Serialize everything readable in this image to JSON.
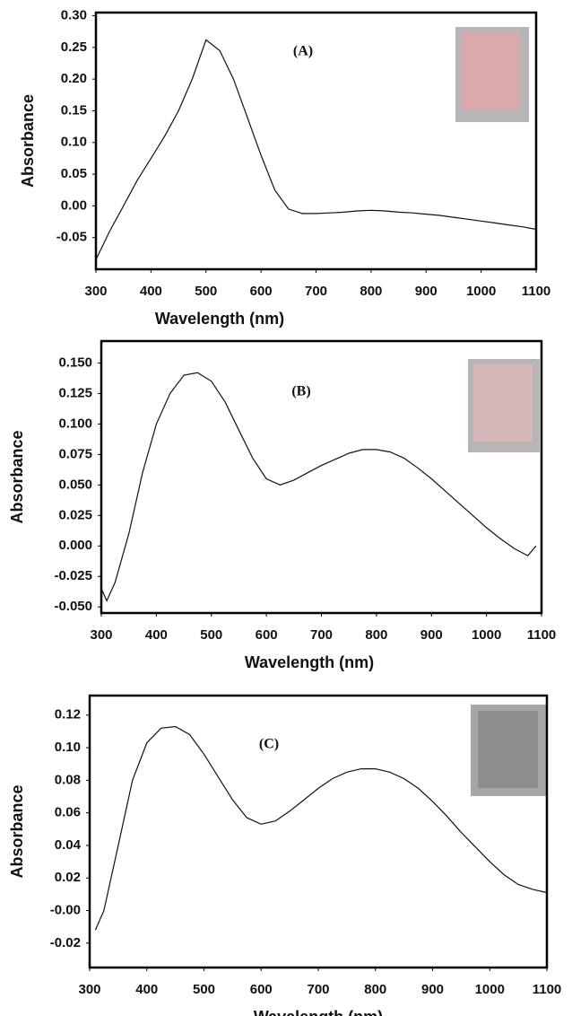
{
  "chart_data": [
    {
      "type": "line",
      "annotation": "(A)",
      "x_label": "Wavelength (nm)",
      "y_label": "Absorbance",
      "color": "#111111",
      "x": [
        300,
        325,
        350,
        375,
        400,
        425,
        450,
        475,
        500,
        525,
        550,
        575,
        600,
        625,
        650,
        675,
        700,
        725,
        750,
        775,
        800,
        825,
        850,
        875,
        900,
        925,
        950,
        975,
        1000,
        1025,
        1050,
        1075,
        1100
      ],
      "values": [
        -0.085,
        -0.04,
        0.0,
        0.04,
        0.075,
        0.11,
        0.15,
        0.2,
        0.262,
        0.245,
        0.2,
        0.14,
        0.08,
        0.025,
        -0.005,
        -0.012,
        -0.012,
        -0.011,
        -0.01,
        -0.008,
        -0.007,
        -0.008,
        -0.01,
        -0.011,
        -0.013,
        -0.015,
        -0.018,
        -0.021,
        -0.024,
        -0.027,
        -0.03,
        -0.033,
        -0.037
      ],
      "xlim": [
        300,
        1100
      ],
      "xticks": [
        300,
        400,
        500,
        600,
        700,
        800,
        900,
        1000,
        1100
      ],
      "ylim": [
        -0.1,
        0.305
      ],
      "yticks": [
        {
          "value": 0.3,
          "label": "0.30"
        },
        0.25,
        {
          "value": 0.2,
          "label": "0.20"
        },
        0.15,
        {
          "value": 0.1,
          "label": "0.10"
        },
        0.05,
        {
          "value": 0,
          "label": "0.00"
        },
        -0.05
      ]
    },
    {
      "type": "line",
      "annotation": "(B)",
      "x_label": "Wavelength (nm)",
      "y_label": "Absorbance",
      "color": "#111111",
      "x": [
        300,
        310,
        325,
        350,
        375,
        400,
        425,
        450,
        475,
        500,
        525,
        550,
        575,
        600,
        625,
        650,
        675,
        700,
        725,
        750,
        775,
        800,
        825,
        850,
        875,
        900,
        925,
        950,
        975,
        1000,
        1025,
        1050,
        1075,
        1090
      ],
      "values": [
        -0.035,
        -0.045,
        -0.03,
        0.01,
        0.06,
        0.1,
        0.125,
        0.14,
        0.142,
        0.135,
        0.118,
        0.095,
        0.072,
        0.055,
        0.05,
        0.054,
        0.06,
        0.066,
        0.071,
        0.076,
        0.079,
        0.079,
        0.077,
        0.072,
        0.064,
        0.055,
        0.045,
        0.035,
        0.025,
        0.015,
        0.006,
        -0.002,
        -0.008,
        0.0
      ],
      "xlim": [
        300,
        1100
      ],
      "xticks": [
        300,
        400,
        500,
        600,
        700,
        800,
        900,
        1000,
        1100
      ],
      "ylim": [
        -0.055,
        0.168
      ],
      "yticks": [
        {
          "value": 0.15,
          "label": "0.150"
        },
        0.125,
        {
          "value": 0.1,
          "label": "0.100"
        },
        0.075,
        {
          "value": 0.05,
          "label": "0.050"
        },
        0.025,
        {
          "value": 0,
          "label": "0.000"
        },
        -0.025,
        {
          "value": -0.05,
          "label": "-0.050"
        }
      ]
    },
    {
      "type": "line",
      "annotation": "(C)",
      "x_label": "Wavelength (nm)",
      "y_label": "Absorbance",
      "color": "#111111",
      "x": [
        310,
        325,
        350,
        375,
        400,
        425,
        450,
        475,
        500,
        525,
        550,
        575,
        600,
        625,
        650,
        675,
        700,
        725,
        750,
        775,
        800,
        825,
        850,
        875,
        900,
        925,
        950,
        975,
        1000,
        1025,
        1050,
        1075,
        1100
      ],
      "values": [
        -0.012,
        0.0,
        0.04,
        0.08,
        0.103,
        0.112,
        0.113,
        0.108,
        0.096,
        0.082,
        0.068,
        0.057,
        0.053,
        0.055,
        0.061,
        0.068,
        0.075,
        0.081,
        0.085,
        0.087,
        0.087,
        0.085,
        0.081,
        0.075,
        0.067,
        0.058,
        0.048,
        0.039,
        0.03,
        0.022,
        0.016,
        0.013,
        0.011
      ],
      "xlim": [
        300,
        1100
      ],
      "xticks": [
        300,
        400,
        500,
        600,
        700,
        800,
        900,
        1000,
        1100
      ],
      "ylim": [
        -0.035,
        0.132
      ],
      "yticks": [
        0.12,
        {
          "value": 0.1,
          "label": "0.10"
        },
        0.08,
        0.06,
        0.04,
        0.02,
        {
          "value": 0,
          "label": "-0.00"
        },
        -0.02
      ]
    }
  ]
}
